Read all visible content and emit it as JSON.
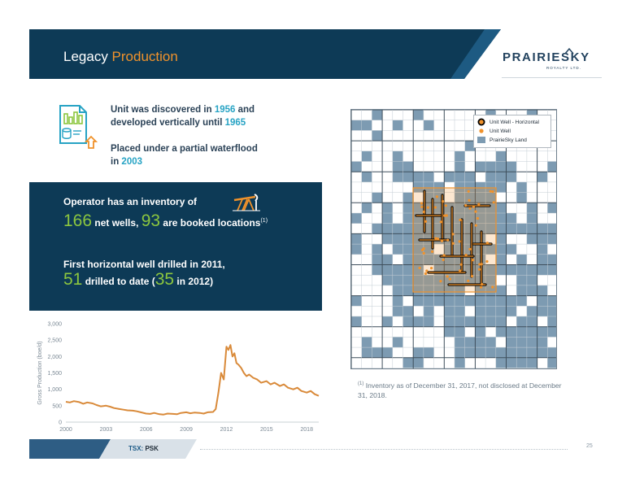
{
  "header": {
    "title_prefix": "Legacy ",
    "title_accent": "Production",
    "logo_main": "PRAIRIESKY",
    "logo_sub": "ROYALTY LTD."
  },
  "facts": {
    "line1_a": "Unit was discovered in ",
    "line1_year": "1956",
    "line1_b": " and",
    "line2_a": "developed vertically until ",
    "line2_year": "1965",
    "line3": "Placed under a partial waterflood",
    "line4_a": "in ",
    "line4_year": "2003"
  },
  "inventory": {
    "line1": "Operator has an inventory of",
    "net_wells_value": "166",
    "net_wells_label": " net wells, ",
    "booked_value": "93",
    "booked_label": " are booked locations",
    "footnote_marker": "(1)",
    "line3": "First horizontal well drilled in 2011,",
    "drilled_value": "51",
    "drilled_label_a": " drilled to date (",
    "drilled_2012_value": "35",
    "drilled_label_b": " in 2012)"
  },
  "map": {
    "legend": [
      "Unit Well - Horizontal",
      "Unit Well",
      "PrairieSky Land"
    ]
  },
  "footnote": {
    "marker": "(1)",
    "text": " Inventory as of December 31, 2017, not disclosed at December 31, 2018."
  },
  "footer": {
    "ticker_label": "TSX: ",
    "ticker_symbol": "PSK",
    "page_number": "25"
  },
  "colors": {
    "navy": "#0d3a56",
    "accent_orange": "#f0922b",
    "highlight_blue": "#27a3c4",
    "highlight_green": "#8cc63f",
    "land_blue": "#7d9bb2",
    "line_orange": "#d98a3a"
  },
  "chart_data": {
    "type": "line",
    "ylabel": "Gross Production (boe/d)",
    "xlabel": "",
    "x_ticks": [
      "2000",
      "2003",
      "2006",
      "2009",
      "2012",
      "2015",
      "2018"
    ],
    "y_ticks": [
      "0",
      "500",
      "1,000",
      "1,500",
      "2,000",
      "2,500",
      "3,000"
    ],
    "xlim": [
      2000,
      2018.9
    ],
    "ylim": [
      0,
      3000
    ],
    "series": [
      {
        "x": [
          2000.0,
          2000.3,
          2000.6,
          2001.0,
          2001.3,
          2001.6,
          2002.0,
          2002.3,
          2002.6,
          2003.0,
          2003.3,
          2003.6,
          2004.0,
          2004.3,
          2004.6,
          2005.0,
          2005.3,
          2005.6,
          2006.0,
          2006.3,
          2006.6,
          2007.0,
          2007.3,
          2007.6,
          2008.0,
          2008.3,
          2008.6,
          2009.0,
          2009.3,
          2009.6,
          2010.0,
          2010.3,
          2010.6,
          2011.0,
          2011.2,
          2011.4,
          2011.6,
          2011.8,
          2012.0,
          2012.15,
          2012.3,
          2012.45,
          2012.6,
          2012.75,
          2012.9,
          2013.1,
          2013.3,
          2013.5,
          2013.7,
          2014.0,
          2014.3,
          2014.6,
          2015.0,
          2015.3,
          2015.6,
          2016.0,
          2016.3,
          2016.6,
          2017.0,
          2017.3,
          2017.6,
          2018.0,
          2018.3,
          2018.6,
          2018.9
        ],
        "values": [
          620,
          600,
          640,
          610,
          560,
          600,
          570,
          520,
          480,
          500,
          470,
          430,
          400,
          380,
          360,
          350,
          330,
          300,
          260,
          250,
          280,
          240,
          230,
          260,
          250,
          240,
          280,
          300,
          270,
          290,
          280,
          260,
          300,
          310,
          400,
          900,
          1500,
          1300,
          2300,
          2200,
          2350,
          2000,
          2100,
          1800,
          1750,
          1650,
          1500,
          1400,
          1450,
          1350,
          1300,
          1200,
          1250,
          1150,
          1200,
          1100,
          1150,
          1050,
          1000,
          1050,
          950,
          900,
          950,
          850,
          800
        ]
      }
    ]
  }
}
